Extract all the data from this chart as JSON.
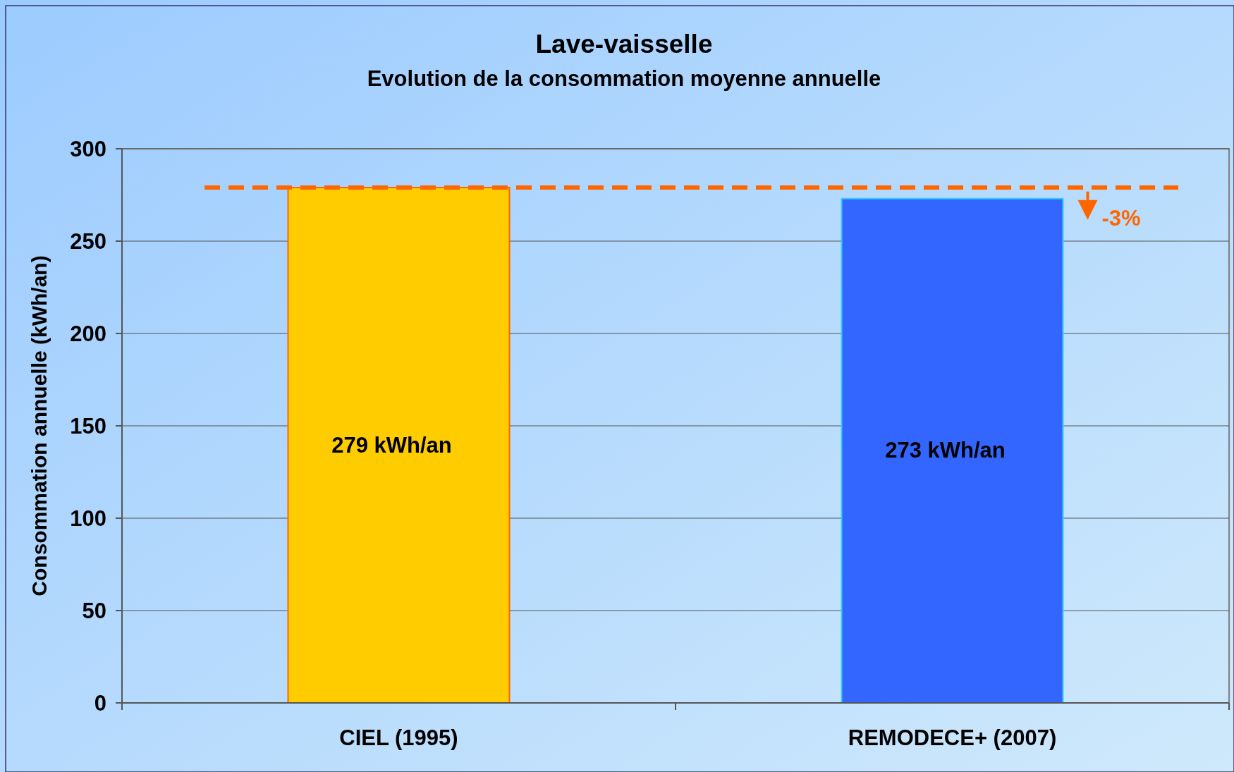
{
  "chart_data": {
    "type": "bar",
    "title": "Lave-vaisselle",
    "subtitle": "Evolution de la consommation moyenne annuelle",
    "ylabel": "Consommation annuelle (kWh/an)",
    "categories": [
      "CIEL (1995)",
      "REMODECE+ (2007)"
    ],
    "values": [
      279,
      273
    ],
    "colors": [
      "#ffcc00",
      "#3366ff"
    ],
    "value_labels": [
      "279 kWh/an",
      "273 kWh/an"
    ],
    "ylim": [
      0,
      300
    ],
    "yticks": [
      0,
      50,
      100,
      150,
      200,
      250,
      300
    ],
    "grid": "y",
    "ref_lines": [
      {
        "axis": "y",
        "value": 279,
        "color": "#ff6600",
        "line_style": "dashed"
      }
    ],
    "annotations": [
      "-3%"
    ]
  }
}
